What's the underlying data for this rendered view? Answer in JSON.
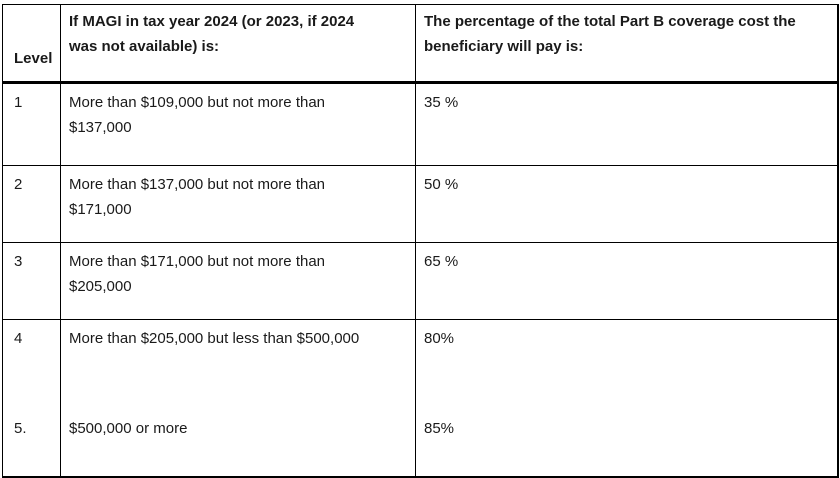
{
  "table": {
    "headers": {
      "level": "Level",
      "magi": "If MAGI in tax year 2024 (or 2023, if 2024 was not available) is:",
      "percent": "The percentage of the total Part B coverage cost the beneficiary will pay is:"
    },
    "rows": [
      {
        "level": "1",
        "magi": "More than $109,000 but not more than $137,000",
        "percent": "35 %"
      },
      {
        "level": "2",
        "magi": "More than $137,000 but not more than $171,000",
        "percent": "50 %"
      },
      {
        "level": "3",
        "magi": "More than $171,000 but not more than $205,000",
        "percent": "65 %"
      },
      {
        "level": "4",
        "magi": "More than $205,000 but less than $500,000",
        "percent": "80%"
      },
      {
        "level": "5.",
        "magi": "$500,000 or more",
        "percent": "85%"
      }
    ]
  }
}
